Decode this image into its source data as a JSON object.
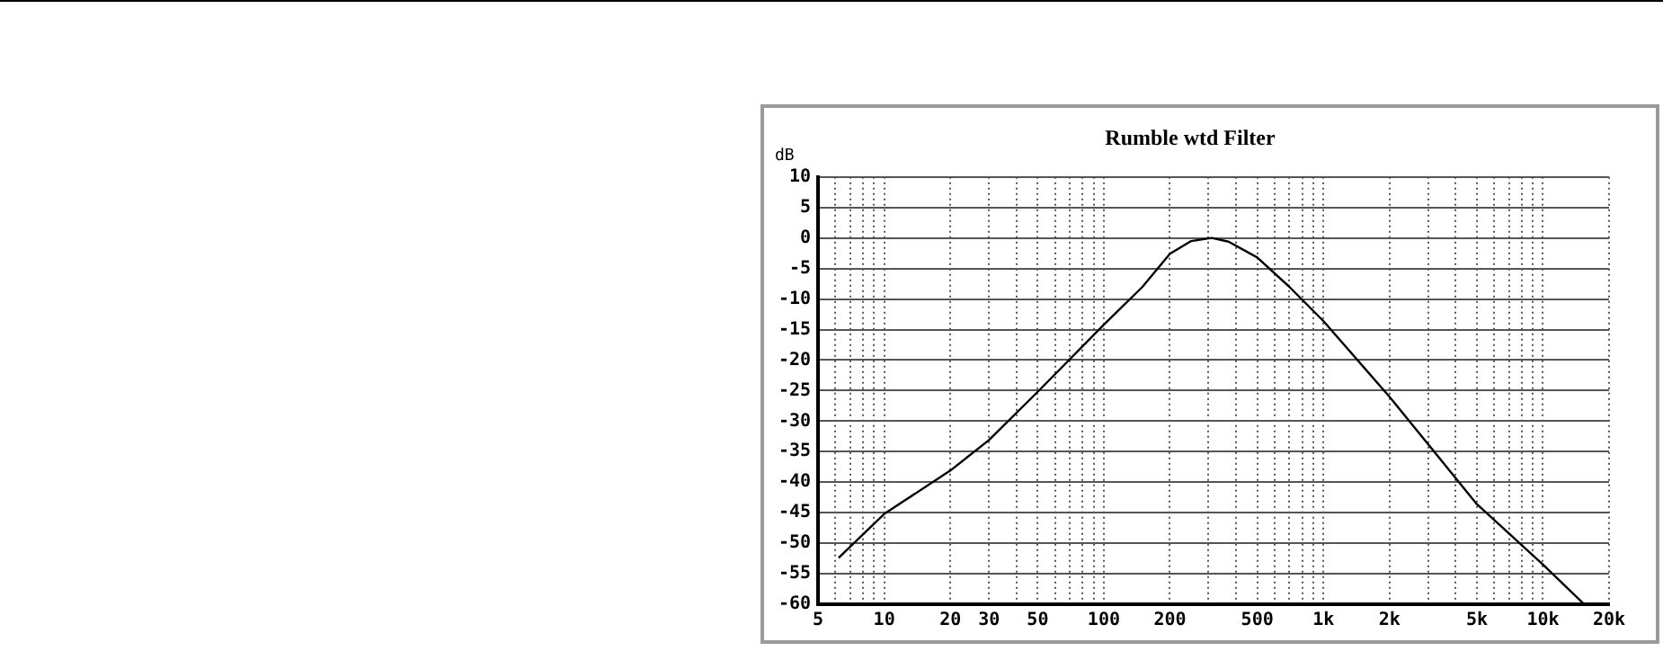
{
  "chart_data": {
    "type": "line",
    "title": "Rumble wtd Filter",
    "ylabel": "dB",
    "log": "x",
    "grid": true,
    "legend": false,
    "marker": "none",
    "line_style": "solid",
    "xlim": [
      5,
      20000
    ],
    "ylim": [
      -60,
      10
    ],
    "xticks": [
      5,
      {
        "value": 6,
        "label": null
      },
      {
        "value": 7,
        "label": null
      },
      {
        "value": 8,
        "label": null
      },
      {
        "value": 9,
        "label": null
      },
      10,
      20,
      30,
      {
        "value": 40,
        "label": null
      },
      50,
      {
        "value": 60,
        "label": null
      },
      {
        "value": 70,
        "label": null
      },
      {
        "value": 80,
        "label": null
      },
      {
        "value": 90,
        "label": null
      },
      100,
      200,
      {
        "value": 300,
        "label": null
      },
      {
        "value": 400,
        "label": null
      },
      500,
      {
        "value": 600,
        "label": null
      },
      {
        "value": 700,
        "label": null
      },
      {
        "value": 800,
        "label": null
      },
      {
        "value": 900,
        "label": null
      },
      {
        "value": 1000,
        "label": "1k"
      },
      {
        "value": 2000,
        "label": "2k"
      },
      {
        "value": 3000,
        "label": null
      },
      {
        "value": 4000,
        "label": null
      },
      {
        "value": 5000,
        "label": "5k"
      },
      {
        "value": 6000,
        "label": null
      },
      {
        "value": 7000,
        "label": null
      },
      {
        "value": 8000,
        "label": null
      },
      {
        "value": 9000,
        "label": null
      },
      {
        "value": 10000,
        "label": "10k"
      },
      {
        "value": 20000,
        "label": "20k"
      }
    ],
    "yticks": [
      -60,
      -55,
      -50,
      -45,
      -40,
      -35,
      -30,
      -25,
      -20,
      -15,
      -10,
      -5,
      0,
      5,
      10
    ],
    "series": [
      {
        "color": "#000000",
        "x": [
          6.2,
          10,
          20,
          30,
          50,
          100,
          150,
          200,
          250,
          310,
          370,
          500,
          700,
          1000,
          2000,
          5000,
          10000,
          15200
        ],
        "values": [
          -52.4,
          -45.2,
          -38.1,
          -33.1,
          -25.2,
          -14.2,
          -8,
          -2.6,
          -0.5,
          0,
          -0.6,
          -3.2,
          -8,
          -13.6,
          -26,
          -43.6,
          -53.5,
          -59.8
        ]
      }
    ]
  }
}
